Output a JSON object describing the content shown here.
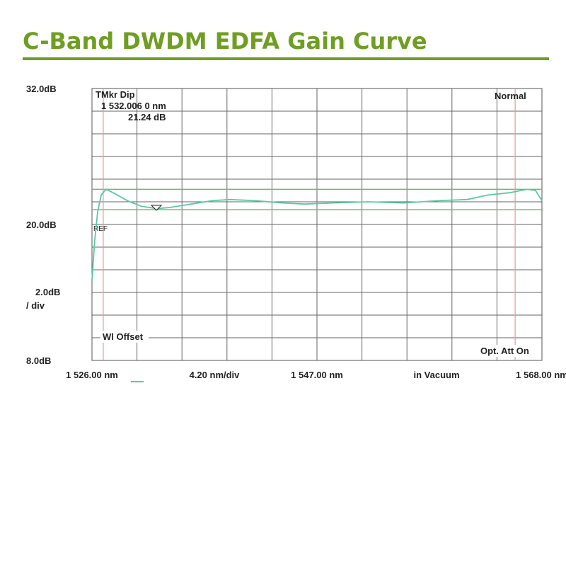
{
  "title": "C-Band DWDM EDFA Gain Curve",
  "chart_data": {
    "type": "line",
    "x": [
      1526,
      1526.26,
      1526.53,
      1526.86,
      1527.32,
      1527.98,
      1529.3,
      1530.62,
      1532.08,
      1533.26,
      1535.25,
      1537.23,
      1538.88,
      1541.19,
      1543.83,
      1545.81,
      1548.45,
      1551.75,
      1555.05,
      1558.36,
      1561.0,
      1562.98,
      1564.96,
      1566.61,
      1567.4,
      1568
    ],
    "values": [
      15.1,
      18.6,
      21.1,
      22.6,
      23.1,
      22.8,
      22.1,
      21.6,
      21.4,
      21.5,
      21.8,
      22.1,
      22.2,
      22.1,
      21.9,
      21.8,
      21.9,
      22.0,
      21.9,
      22.1,
      22.2,
      22.6,
      22.8,
      23.1,
      23.0,
      22.1
    ],
    "color": "#5cc7a4",
    "xlim": [
      1526,
      1568
    ],
    "ylim": [
      8,
      32
    ],
    "xticks": [
      {
        "value": 1526,
        "label": "1 526.00 nm"
      },
      {
        "value": 1547,
        "label": "1 547.00 nm"
      },
      {
        "value": 1568,
        "label": "1 568.00 nm"
      }
    ],
    "yticks": [
      {
        "value": 32,
        "label": "32.0dB"
      },
      {
        "value": 20,
        "label": "20.0dB"
      },
      {
        "value": 8,
        "label": "8.0dB"
      }
    ],
    "grid_x": [
      1526,
      1530.2,
      1534.4,
      1538.6,
      1542.8,
      1547,
      1551.2,
      1555.4,
      1559.6,
      1563.8,
      1568
    ],
    "grid_y": [
      8,
      10,
      12,
      14,
      16,
      18,
      20,
      22,
      24,
      26,
      28,
      30,
      32
    ],
    "hlines": [
      23.1,
      21.3
    ],
    "hline_color": "#6dbb5a",
    "vlines": [
      1527.05,
      1565.5
    ],
    "vline_color": "#e59a9a",
    "y_scale_label": [
      "2.0dB",
      "/ div"
    ],
    "x_scale_labels": [
      "4.20 nm/div",
      "in Vacuum"
    ],
    "annotations": [
      "TMkr  Dip",
      "1 532.006 0  nm",
      "21.24  dB",
      "Normal",
      "REF",
      "Wl Offset",
      "Opt. Att On"
    ]
  }
}
